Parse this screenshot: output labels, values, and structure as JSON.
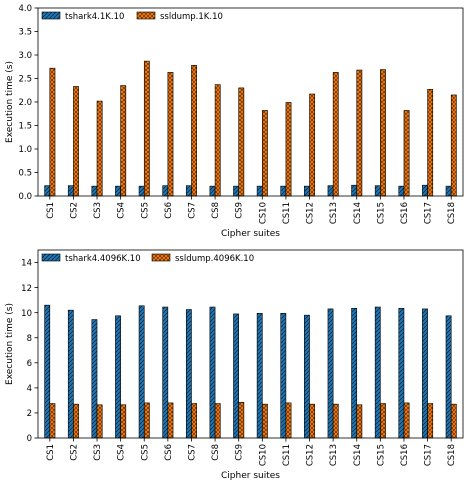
{
  "chart_data": [
    {
      "type": "bar",
      "xlabel": "Cipher suites",
      "ylabel": "Execution time (s)",
      "ylim": [
        0,
        4.0
      ],
      "yticks": [
        "0.0",
        "0.5",
        "1.0",
        "1.5",
        "2.0",
        "2.5",
        "3.0",
        "3.5",
        "4.0"
      ],
      "legend_position": "top-left",
      "grid": false,
      "categories": [
        "CS1",
        "CS2",
        "CS3",
        "CS4",
        "CS5",
        "CS6",
        "CS7",
        "CS8",
        "CS9",
        "CS10",
        "CS11",
        "CS12",
        "CS13",
        "CS14",
        "CS15",
        "CS16",
        "CS17",
        "CS18"
      ],
      "series": [
        {
          "name": "tshark4.1K.10",
          "color": "#1f77b4",
          "pattern": "hatch",
          "values": [
            0.22,
            0.22,
            0.21,
            0.21,
            0.21,
            0.22,
            0.22,
            0.21,
            0.21,
            0.21,
            0.21,
            0.21,
            0.22,
            0.23,
            0.22,
            0.21,
            0.23,
            0.21
          ]
        },
        {
          "name": "ssldump.1K.10",
          "color": "#ff7f0e",
          "pattern": "cross",
          "values": [
            2.72,
            2.33,
            2.02,
            2.35,
            2.87,
            2.63,
            2.78,
            2.37,
            2.3,
            1.82,
            1.99,
            2.17,
            2.63,
            2.68,
            2.69,
            1.82,
            2.27,
            2.15
          ]
        }
      ]
    },
    {
      "type": "bar",
      "xlabel": "Cipher suites",
      "ylabel": "Execution time (s)",
      "ylim": [
        0,
        15
      ],
      "yticks": [
        "0",
        "2",
        "4",
        "6",
        "8",
        "10",
        "12",
        "14"
      ],
      "legend_position": "top-left",
      "grid": false,
      "categories": [
        "CS1",
        "CS2",
        "CS3",
        "CS4",
        "CS5",
        "CS6",
        "CS7",
        "CS8",
        "CS9",
        "CS10",
        "CS11",
        "CS12",
        "CS13",
        "CS14",
        "CS15",
        "CS16",
        "CS17",
        "CS18"
      ],
      "series": [
        {
          "name": "tshark4.4096K.10",
          "color": "#1f77b4",
          "pattern": "hatch",
          "values": [
            10.6,
            10.2,
            9.45,
            9.75,
            10.55,
            10.45,
            10.25,
            10.45,
            9.9,
            9.95,
            9.95,
            9.8,
            10.3,
            10.35,
            10.45,
            10.35,
            10.3,
            9.75
          ]
        },
        {
          "name": "ssldump.4096K.10",
          "color": "#ff7f0e",
          "pattern": "cross",
          "values": [
            2.75,
            2.7,
            2.65,
            2.65,
            2.8,
            2.8,
            2.75,
            2.75,
            2.85,
            2.7,
            2.8,
            2.7,
            2.7,
            2.65,
            2.75,
            2.8,
            2.75,
            2.7
          ]
        }
      ]
    }
  ]
}
